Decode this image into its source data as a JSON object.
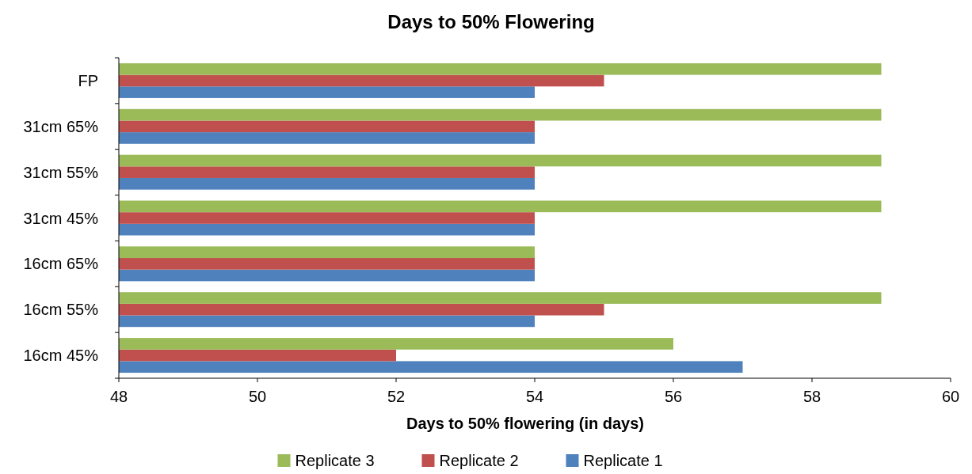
{
  "chart_data": {
    "type": "bar",
    "orientation": "horizontal",
    "title": "Days to 50% Flowering",
    "xlabel": "Days to 50% flowering (in days)",
    "categories": [
      "FP",
      "31cm 65%",
      "31cm 55%",
      "31cm 45%",
      "16cm 65%",
      "16cm 55%",
      "16cm 45%"
    ],
    "series": [
      {
        "name": "Replicate 1",
        "color": "#4f81bd",
        "values": [
          54,
          54,
          54,
          54,
          54,
          54,
          57
        ]
      },
      {
        "name": "Replicate 2",
        "color": "#c0504d",
        "values": [
          55,
          54,
          54,
          54,
          54,
          55,
          52
        ]
      },
      {
        "name": "Replicate 3",
        "color": "#9bbb59",
        "values": [
          59,
          59,
          59,
          59,
          54,
          59,
          56
        ]
      }
    ],
    "xlim": [
      48,
      60
    ],
    "xticks": [
      48,
      50,
      52,
      54,
      56,
      58,
      60
    ],
    "legend": "bottom"
  }
}
